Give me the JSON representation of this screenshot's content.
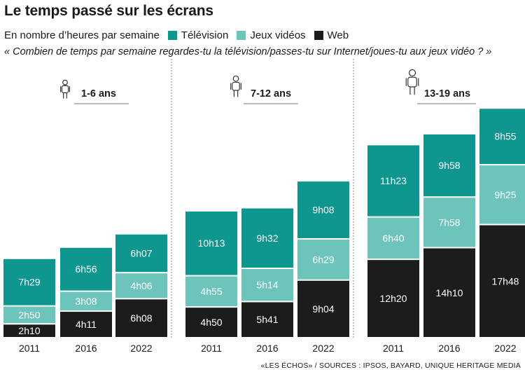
{
  "title": "Le temps passé sur les écrans",
  "subtitle": "En nombre d’heures par semaine",
  "question": "« Combien de temps par semaine regardes-tu la télévision/passes-tu sur Internet/joues-tu aux jeux vidéo ? »",
  "source": "«LES ÉCHOS» / SOURCES : IPSOS, BAYARD, UNIQUE HERITAGE MEDIA",
  "colors": {
    "television": "#0e968f",
    "jeux": "#6cc4bb",
    "web": "#1c1c1c",
    "separator": "#8a8a8a",
    "label_light": "#ffffff",
    "label_dark": "#1a1a1a"
  },
  "legend": [
    {
      "name": "Télévision",
      "color_key": "television"
    },
    {
      "name": "Jeux vidéos",
      "color_key": "jeux"
    },
    {
      "name": "Web",
      "color_key": "web"
    }
  ],
  "icons": [
    "child-small-icon",
    "child-medium-icon",
    "teen-icon"
  ],
  "chart_data": {
    "type": "bar",
    "stacked": true,
    "unit": "hours per week",
    "legend_position": "top-left",
    "grid": false,
    "stack_order_bottom_to_top": [
      "Web",
      "Jeux vidéos",
      "Télévision"
    ],
    "groups": [
      {
        "label": "1-6 ans",
        "bars": [
          {
            "year": "2011",
            "segments": [
              {
                "series": "Web",
                "value": 2.1667,
                "label": "2h10"
              },
              {
                "series": "Jeux vidéos",
                "value": 2.8333,
                "label": "2h50"
              },
              {
                "series": "Télévision",
                "value": 7.4833,
                "label": "7h29"
              }
            ]
          },
          {
            "year": "2016",
            "segments": [
              {
                "series": "Web",
                "value": 4.1833,
                "label": "4h11"
              },
              {
                "series": "Jeux vidéos",
                "value": 3.1333,
                "label": "3h08"
              },
              {
                "series": "Télévision",
                "value": 6.9333,
                "label": "6h56"
              }
            ]
          },
          {
            "year": "2022",
            "segments": [
              {
                "series": "Web",
                "value": 6.1333,
                "label": "6h08"
              },
              {
                "series": "Jeux vidéos",
                "value": 4.1,
                "label": "4h06"
              },
              {
                "series": "Télévision",
                "value": 6.1167,
                "label": "6h07"
              }
            ]
          }
        ]
      },
      {
        "label": "7-12 ans",
        "bars": [
          {
            "year": "2011",
            "segments": [
              {
                "series": "Web",
                "value": 4.8333,
                "label": "4h50"
              },
              {
                "series": "Jeux vidéos",
                "value": 4.9167,
                "label": "4h55"
              },
              {
                "series": "Télévision",
                "value": 10.2167,
                "label": "10h13"
              }
            ]
          },
          {
            "year": "2016",
            "segments": [
              {
                "series": "Web",
                "value": 5.6833,
                "label": "5h41"
              },
              {
                "series": "Jeux vidéos",
                "value": 5.2333,
                "label": "5h14"
              },
              {
                "series": "Télévision",
                "value": 9.5333,
                "label": "9h32"
              }
            ]
          },
          {
            "year": "2022",
            "segments": [
              {
                "series": "Web",
                "value": 9.0667,
                "label": "9h04"
              },
              {
                "series": "Jeux vidéos",
                "value": 6.4833,
                "label": "6h29"
              },
              {
                "series": "Télévision",
                "value": 9.1333,
                "label": "9h08"
              }
            ]
          }
        ]
      },
      {
        "label": "13-19 ans",
        "bars": [
          {
            "year": "2011",
            "segments": [
              {
                "series": "Web",
                "value": 12.3333,
                "label": "12h20"
              },
              {
                "series": "Jeux vidéos",
                "value": 6.6667,
                "label": "6h40"
              },
              {
                "series": "Télévision",
                "value": 11.3833,
                "label": "11h23"
              }
            ]
          },
          {
            "year": "2016",
            "segments": [
              {
                "series": "Web",
                "value": 14.1667,
                "label": "14h10"
              },
              {
                "series": "Jeux vidéos",
                "value": 7.9667,
                "label": "7h58"
              },
              {
                "series": "Télévision",
                "value": 9.9667,
                "label": "9h58"
              }
            ]
          },
          {
            "year": "2022",
            "segments": [
              {
                "series": "Web",
                "value": 17.8,
                "label": "17h48"
              },
              {
                "series": "Jeux vidéos",
                "value": 9.4167,
                "label": "9h25"
              },
              {
                "series": "Télévision",
                "value": 8.9167,
                "label": "8h55"
              }
            ]
          }
        ]
      }
    ]
  }
}
